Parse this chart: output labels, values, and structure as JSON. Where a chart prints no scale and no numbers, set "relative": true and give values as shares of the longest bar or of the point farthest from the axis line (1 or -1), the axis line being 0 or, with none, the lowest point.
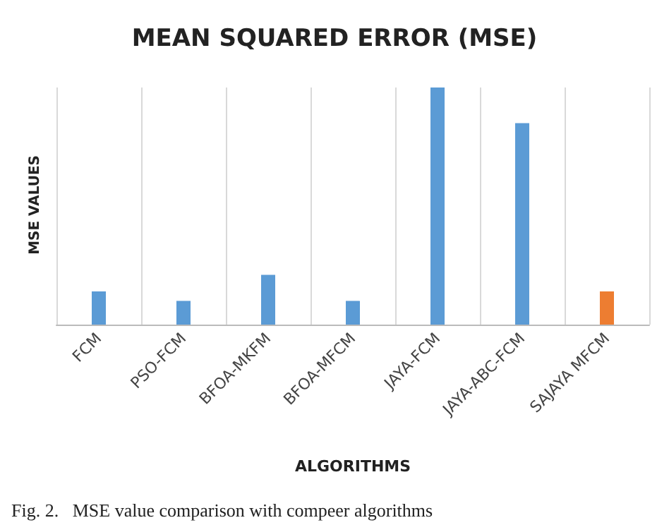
{
  "chart_data": {
    "type": "bar",
    "title": "MEAN SQUARED ERROR (MSE)",
    "xlabel": "ALGORITHMS",
    "ylabel": "MSE VALUES",
    "categories": [
      "FCM",
      "PSO-FCM",
      "BFOA-MKFM",
      "BFOA-MFCM",
      "JAYA-FCM",
      "JAYA-ABC-FCM",
      "SAJAYA MFCM"
    ],
    "values": [
      0.14,
      0.1,
      0.21,
      0.1,
      1,
      0.85,
      0.14
    ],
    "colors": [
      "#5b9bd5",
      "#5b9bd5",
      "#5b9bd5",
      "#5b9bd5",
      "#5b9bd5",
      "#5b9bd5",
      "#ed7d31"
    ],
    "relative": true,
    "grid": "x",
    "annotations": [
      "Fig. 2.   MSE value comparison with compeer algorithms"
    ]
  }
}
